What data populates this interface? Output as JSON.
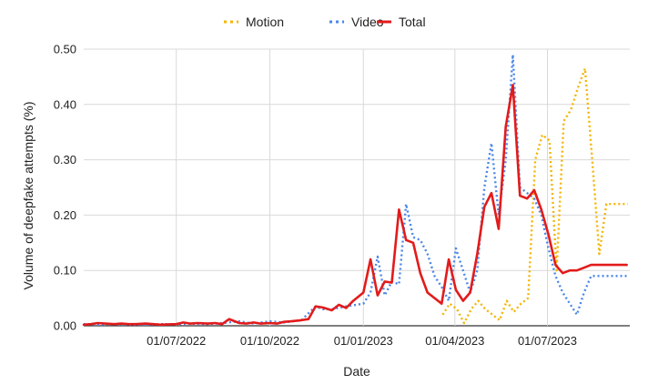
{
  "chart_data": {
    "type": "line",
    "xlabel": "Date",
    "ylabel": "Volume of deepfake attempts (%)",
    "ylim": [
      0,
      0.5
    ],
    "y_ticks": [
      "0.00",
      "0.10",
      "0.20",
      "0.30",
      "0.40",
      "0.50"
    ],
    "x_ticks": [
      "01/07/2022",
      "01/10/2022",
      "01/01/2023",
      "01/04/2023",
      "01/07/2023"
    ],
    "x_range": [
      "2022-04-01",
      "2023-09-20"
    ],
    "grid": {
      "vertical": true,
      "horizontal": true
    },
    "legend_position": "top-center",
    "series": [
      {
        "name": "Motion",
        "color": "#F4B400",
        "style": "dotted",
        "x": [
          "2023-03-20",
          "2023-03-27",
          "2023-04-03",
          "2023-04-10",
          "2023-04-17",
          "2023-04-24",
          "2023-05-01",
          "2023-05-08",
          "2023-05-15",
          "2023-05-22",
          "2023-05-29",
          "2023-06-05",
          "2023-06-12",
          "2023-06-19",
          "2023-06-26",
          "2023-07-03",
          "2023-07-10",
          "2023-07-17",
          "2023-07-24",
          "2023-07-31",
          "2023-08-07",
          "2023-08-14",
          "2023-08-21",
          "2023-08-28",
          "2023-09-04",
          "2023-09-11",
          "2023-09-18"
        ],
        "y": [
          0.02,
          0.04,
          0.03,
          0.005,
          0.03,
          0.045,
          0.03,
          0.02,
          0.01,
          0.045,
          0.025,
          0.04,
          0.05,
          0.3,
          0.345,
          0.335,
          0.1,
          0.37,
          0.39,
          0.43,
          0.465,
          0.3,
          0.13,
          0.22,
          0.22,
          0.22,
          0.22
        ]
      },
      {
        "name": "Video",
        "color": "#4A86E8",
        "style": "dotted",
        "x": [
          "2022-04-01",
          "2022-04-15",
          "2022-05-01",
          "2022-05-15",
          "2022-06-01",
          "2022-06-15",
          "2022-07-01",
          "2022-07-15",
          "2022-08-01",
          "2022-08-15",
          "2022-09-01",
          "2022-09-15",
          "2022-10-01",
          "2022-10-15",
          "2022-11-01",
          "2022-11-15",
          "2022-11-22",
          "2022-12-01",
          "2022-12-15",
          "2023-01-01",
          "2023-01-08",
          "2023-01-15",
          "2023-01-22",
          "2023-01-29",
          "2023-02-05",
          "2023-02-12",
          "2023-02-19",
          "2023-02-26",
          "2023-03-05",
          "2023-03-12",
          "2023-03-19",
          "2023-03-26",
          "2023-04-02",
          "2023-04-09",
          "2023-04-16",
          "2023-04-23",
          "2023-04-30",
          "2023-05-07",
          "2023-05-14",
          "2023-05-21",
          "2023-05-28",
          "2023-06-04",
          "2023-06-11",
          "2023-06-18",
          "2023-06-25",
          "2023-07-02",
          "2023-07-09",
          "2023-07-16",
          "2023-07-23",
          "2023-07-30",
          "2023-08-06",
          "2023-08-13",
          "2023-08-20",
          "2023-08-27",
          "2023-09-03",
          "2023-09-10",
          "2023-09-17"
        ],
        "y": [
          0.003,
          0.002,
          0.003,
          0.002,
          0.002,
          0.003,
          0.003,
          0.004,
          0.003,
          0.005,
          0.008,
          0.004,
          0.008,
          0.006,
          0.01,
          0.035,
          0.03,
          0.03,
          0.035,
          0.04,
          0.06,
          0.125,
          0.055,
          0.08,
          0.075,
          0.22,
          0.16,
          0.155,
          0.13,
          0.09,
          0.07,
          0.045,
          0.14,
          0.1,
          0.06,
          0.1,
          0.25,
          0.33,
          0.2,
          0.3,
          0.49,
          0.25,
          0.24,
          0.23,
          0.2,
          0.14,
          0.09,
          0.06,
          0.04,
          0.02,
          0.06,
          0.09,
          0.09,
          0.09,
          0.09,
          0.09,
          0.09
        ]
      },
      {
        "name": "Total",
        "color": "#E31B1B",
        "style": "solid",
        "x": [
          "2022-04-01",
          "2022-04-08",
          "2022-04-15",
          "2022-04-22",
          "2022-05-01",
          "2022-05-08",
          "2022-05-15",
          "2022-05-22",
          "2022-06-01",
          "2022-06-15",
          "2022-07-01",
          "2022-07-08",
          "2022-07-15",
          "2022-07-22",
          "2022-08-01",
          "2022-08-08",
          "2022-08-15",
          "2022-08-22",
          "2022-09-01",
          "2022-09-08",
          "2022-09-15",
          "2022-09-22",
          "2022-10-01",
          "2022-10-08",
          "2022-10-15",
          "2022-10-22",
          "2022-11-01",
          "2022-11-08",
          "2022-11-15",
          "2022-11-22",
          "2022-12-01",
          "2022-12-08",
          "2022-12-15",
          "2022-12-22",
          "2023-01-01",
          "2023-01-08",
          "2023-01-15",
          "2023-01-22",
          "2023-01-29",
          "2023-02-05",
          "2023-02-12",
          "2023-02-19",
          "2023-02-26",
          "2023-03-05",
          "2023-03-12",
          "2023-03-19",
          "2023-03-26",
          "2023-04-02",
          "2023-04-09",
          "2023-04-16",
          "2023-04-23",
          "2023-04-30",
          "2023-05-07",
          "2023-05-14",
          "2023-05-21",
          "2023-05-28",
          "2023-06-04",
          "2023-06-11",
          "2023-06-18",
          "2023-06-25",
          "2023-07-02",
          "2023-07-09",
          "2023-07-16",
          "2023-07-23",
          "2023-07-30",
          "2023-08-06",
          "2023-08-13",
          "2023-08-20",
          "2023-08-27",
          "2023-09-03",
          "2023-09-10",
          "2023-09-17"
        ],
        "y": [
          0.002,
          0.003,
          0.005,
          0.004,
          0.003,
          0.004,
          0.003,
          0.003,
          0.004,
          0.002,
          0.003,
          0.006,
          0.004,
          0.005,
          0.004,
          0.005,
          0.003,
          0.012,
          0.005,
          0.004,
          0.006,
          0.004,
          0.005,
          0.004,
          0.007,
          0.008,
          0.01,
          0.012,
          0.035,
          0.033,
          0.028,
          0.038,
          0.032,
          0.045,
          0.06,
          0.12,
          0.055,
          0.08,
          0.078,
          0.21,
          0.155,
          0.15,
          0.095,
          0.06,
          0.05,
          0.04,
          0.12,
          0.065,
          0.045,
          0.06,
          0.13,
          0.215,
          0.24,
          0.175,
          0.36,
          0.435,
          0.235,
          0.23,
          0.245,
          0.21,
          0.165,
          0.11,
          0.095,
          0.1,
          0.1,
          0.105,
          0.11,
          0.11,
          0.11,
          0.11,
          0.11,
          0.11
        ]
      }
    ]
  }
}
